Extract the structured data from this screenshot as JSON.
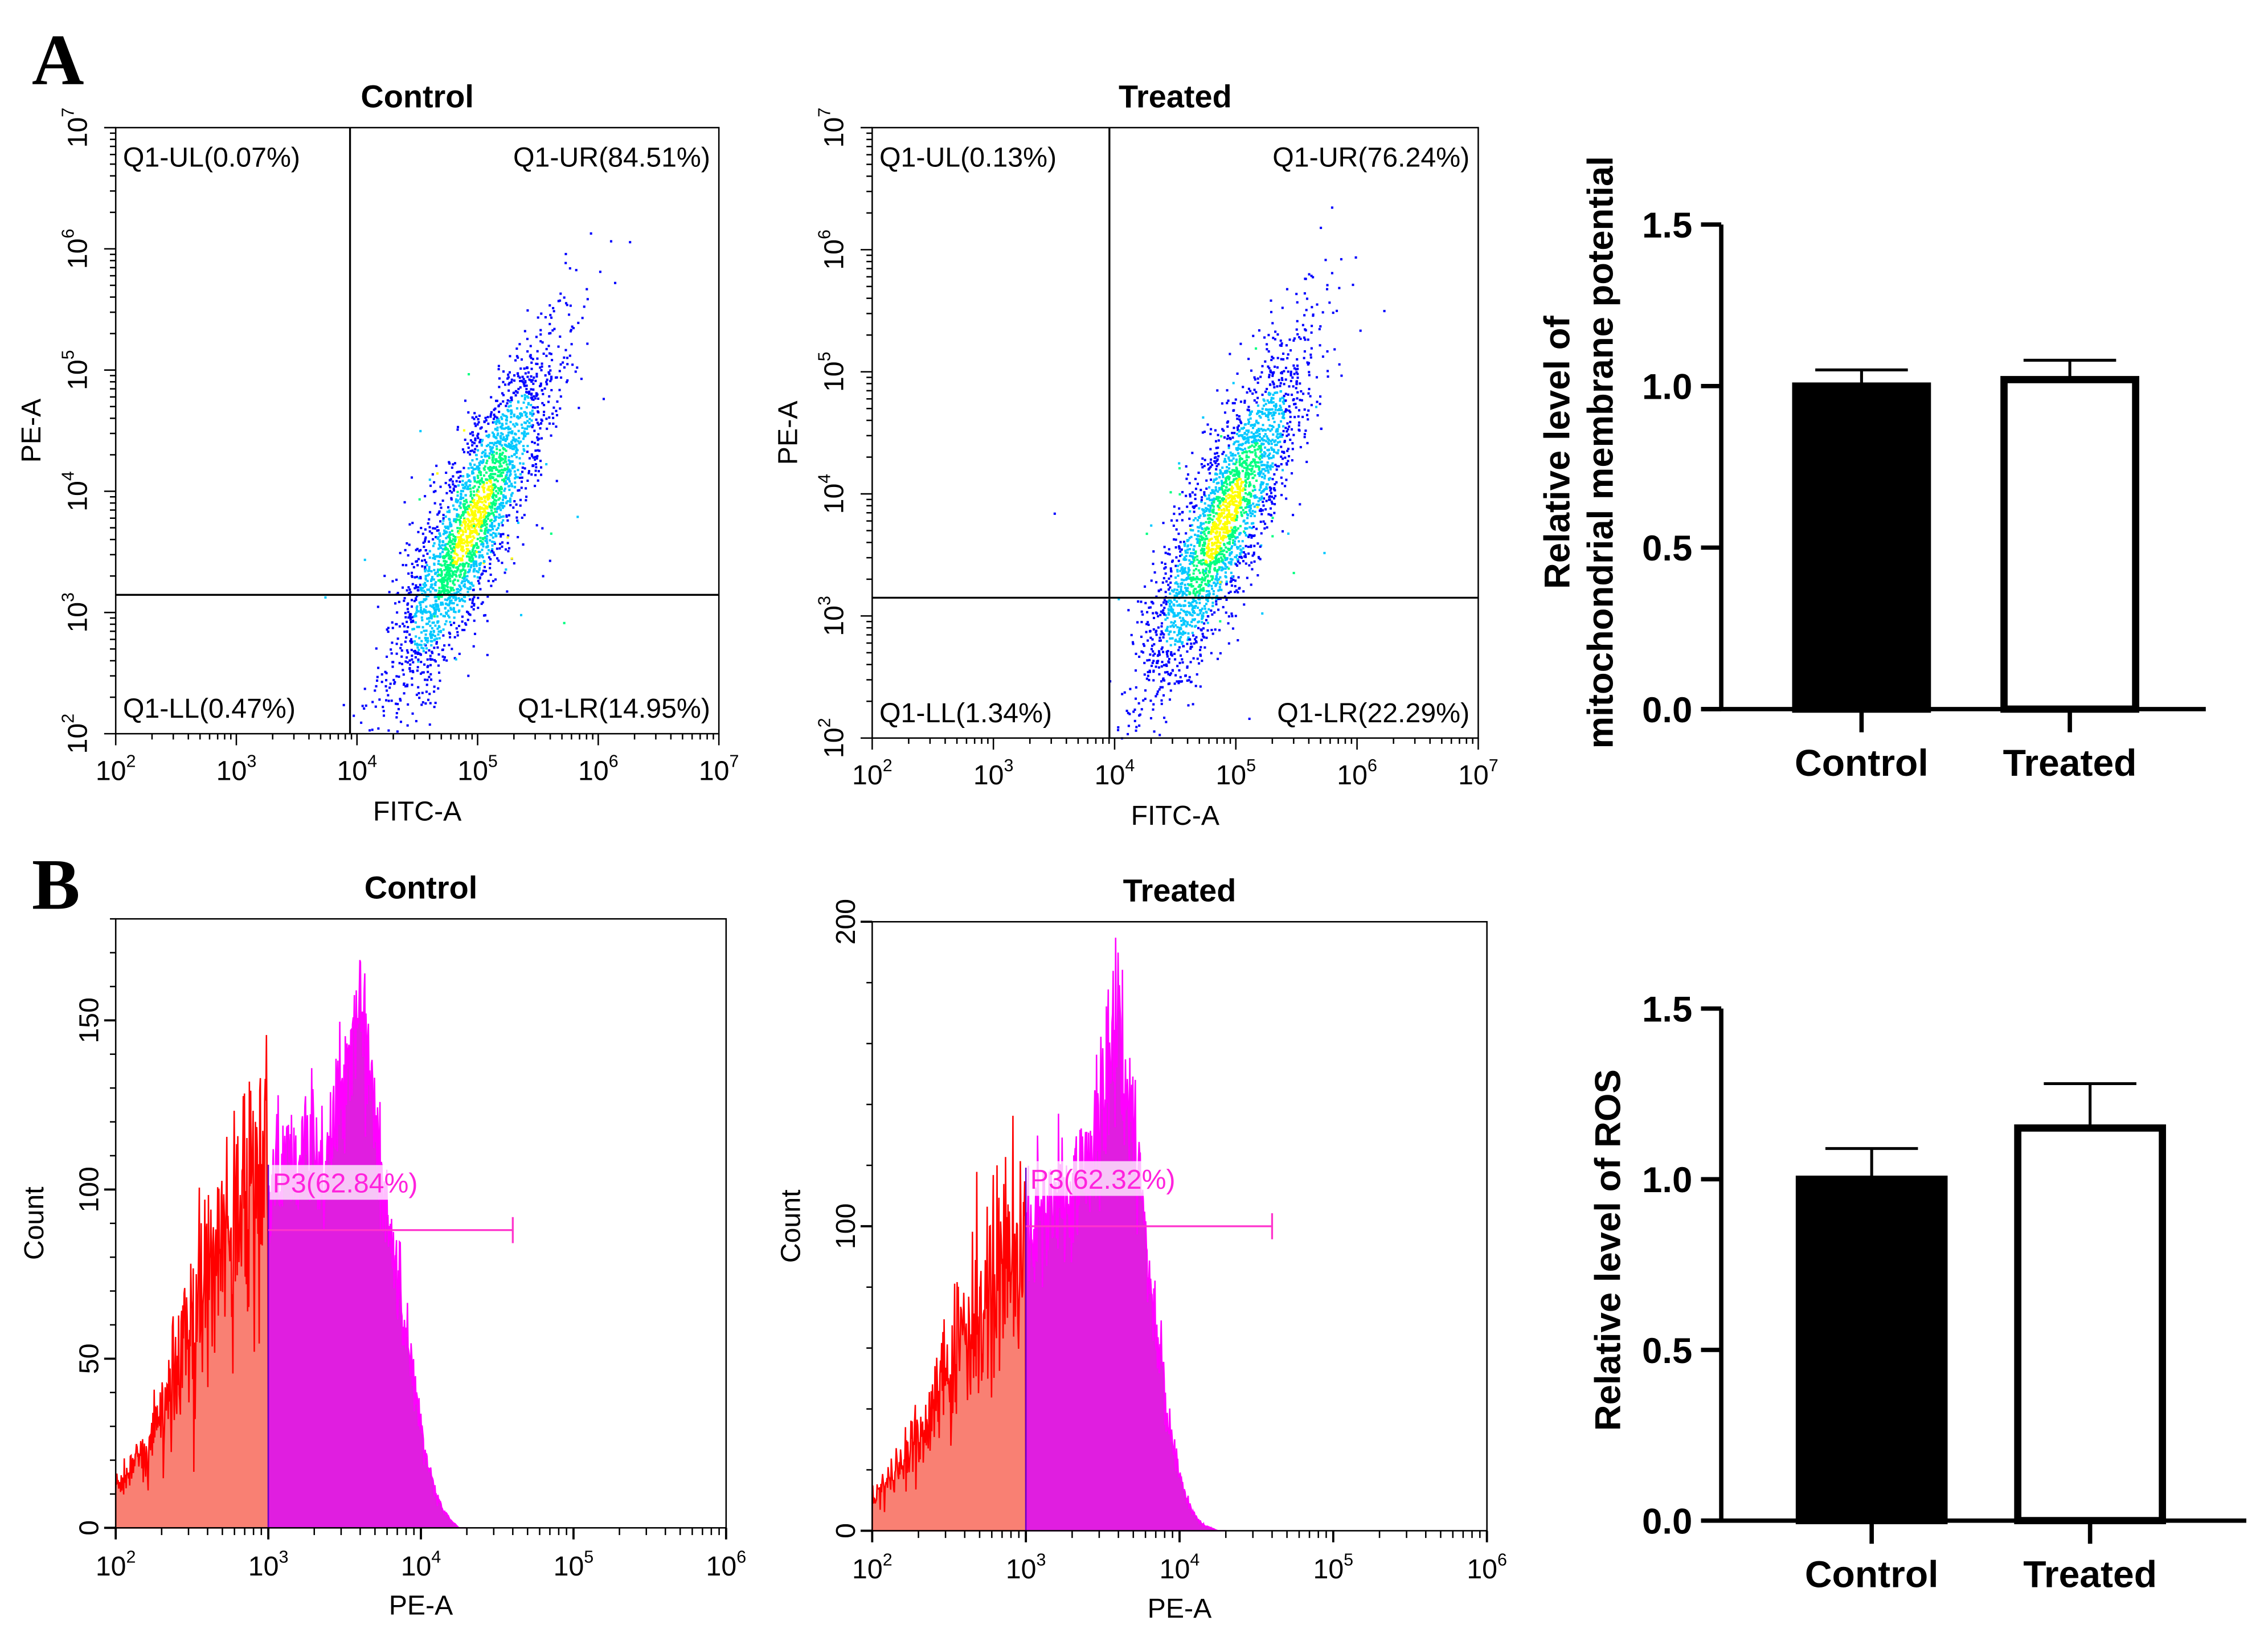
{
  "panel_labels": [
    "A",
    "B"
  ],
  "chart_data": [
    {
      "type": "scatter",
      "title": "Control",
      "xlabel": "FITC-A",
      "ylabel": "PE-A",
      "xscale": "log",
      "yscale": "log",
      "xlim": [
        100,
        10000000
      ],
      "ylim": [
        100,
        10000000
      ],
      "x_ticks": [
        "2",
        "3",
        "4",
        "5",
        "6",
        "7"
      ],
      "y_ticks": [
        "2",
        "3",
        "4",
        "5",
        "6",
        "7"
      ],
      "gate": {
        "x": 9000,
        "y": 1400
      },
      "quadrants": {
        "UL": "Q1-UL(0.07%)",
        "UR": "Q1-UR(84.51%)",
        "LL": "Q1-LL(0.47%)",
        "LR": "Q1-LR(14.95%)"
      },
      "population_center_log10": [
        4.95,
        3.75
      ],
      "color_scale": [
        "#0000ff",
        "#00c8ff",
        "#00ff80",
        "#ffff00"
      ]
    },
    {
      "type": "scatter",
      "title": "Treated",
      "xlabel": "FITC-A",
      "ylabel": "PE-A",
      "xscale": "log",
      "yscale": "log",
      "xlim": [
        100,
        10000000
      ],
      "ylim": [
        100,
        10000000
      ],
      "x_ticks": [
        "2",
        "3",
        "4",
        "5",
        "6",
        "7"
      ],
      "y_ticks": [
        "2",
        "3",
        "4",
        "5",
        "6",
        "7"
      ],
      "gate": {
        "x": 8500,
        "y": 1350
      },
      "quadrants": {
        "UL": "Q1-UL(0.13%)",
        "UR": "Q1-UR(76.24%)",
        "LL": "Q1-LL(1.34%)",
        "LR": "Q1-LR(22.29%)"
      },
      "population_center_log10": [
        4.9,
        3.8
      ],
      "color_scale": [
        "#0000ff",
        "#00c8ff",
        "#00ff80",
        "#ffff00"
      ]
    },
    {
      "type": "bar",
      "categories": [
        "Control",
        "Treated"
      ],
      "values": [
        1.0,
        1.02
      ],
      "errors": [
        0.05,
        0.06
      ],
      "fills": [
        "#000000",
        "#ffffff"
      ],
      "ylabel": [
        "Relative level of",
        "mitochondrial membrane potential"
      ],
      "ylim": [
        0,
        1.5
      ],
      "y_ticks": [
        "0.0",
        "0.5",
        "1.0",
        "1.5"
      ]
    },
    {
      "type": "area",
      "title": "Control",
      "xlabel": "PE-A",
      "ylabel": "Count",
      "xscale": "log",
      "xlim": [
        100,
        1000000
      ],
      "ylim": [
        0,
        180
      ],
      "x_ticks": [
        "2",
        "3",
        "4",
        "5",
        "6"
      ],
      "y_ticks": [
        "0",
        "50",
        "100",
        "150"
      ],
      "gate_label": "P3(62.84%)",
      "gate_range": [
        1000,
        40000
      ],
      "gate_y": 88,
      "log10_x": [
        2.0,
        2.1,
        2.2,
        2.3,
        2.4,
        2.5,
        2.6,
        2.7,
        2.8,
        2.9,
        3.0,
        3.1,
        3.2,
        3.3,
        3.4,
        3.5,
        3.55,
        3.6,
        3.65,
        3.7,
        3.75,
        3.8,
        3.85,
        3.9,
        3.95,
        4.0,
        4.05,
        4.1,
        4.15,
        4.2,
        4.25
      ],
      "counts": [
        12,
        18,
        22,
        35,
        42,
        58,
        70,
        80,
        90,
        98,
        100,
        110,
        105,
        108,
        110,
        130,
        150,
        150,
        140,
        120,
        100,
        85,
        70,
        55,
        45,
        30,
        18,
        10,
        5,
        2,
        0
      ]
    },
    {
      "type": "area",
      "title": "Treated",
      "xlabel": "PE-A",
      "ylabel": "Count",
      "xscale": "log",
      "xlim": [
        100,
        1000000
      ],
      "ylim": [
        0,
        200
      ],
      "x_ticks": [
        "2",
        "3",
        "4",
        "5",
        "6"
      ],
      "y_ticks": [
        "0",
        "100",
        "200"
      ],
      "gate_label": "P3(62.32%)",
      "gate_range": [
        1000,
        40000
      ],
      "gate_y": 100,
      "log10_x": [
        2.0,
        2.1,
        2.2,
        2.3,
        2.4,
        2.5,
        2.6,
        2.7,
        2.8,
        2.9,
        3.0,
        3.1,
        3.2,
        3.3,
        3.4,
        3.5,
        3.55,
        3.6,
        3.65,
        3.7,
        3.75,
        3.8,
        3.85,
        3.9,
        3.95,
        4.0,
        4.05,
        4.1,
        4.15,
        4.2,
        4.25
      ],
      "counts": [
        12,
        16,
        22,
        30,
        40,
        52,
        65,
        75,
        82,
        90,
        95,
        100,
        108,
        112,
        120,
        140,
        160,
        170,
        150,
        130,
        105,
        85,
        65,
        45,
        30,
        18,
        10,
        5,
        2,
        1,
        0
      ]
    },
    {
      "type": "bar",
      "categories": [
        "Control",
        "Treated"
      ],
      "values": [
        1.0,
        1.15
      ],
      "errors": [
        0.09,
        0.13
      ],
      "fills": [
        "#000000",
        "#ffffff"
      ],
      "ylabel": [
        "Relative level of  ROS"
      ],
      "ylim": [
        0,
        1.5
      ],
      "y_ticks": [
        "0.0",
        "0.5",
        "1.0",
        "1.5"
      ]
    }
  ]
}
